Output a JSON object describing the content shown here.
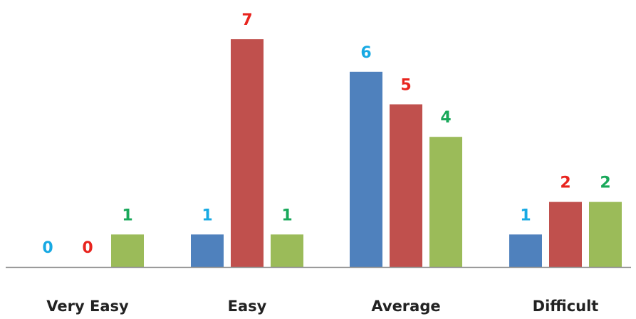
{
  "chart_data": {
    "type": "bar",
    "categories": [
      "Very Easy",
      "Easy",
      "Average",
      "Difficult"
    ],
    "series": [
      {
        "color": "#4F81BD",
        "label_color": "#17A9E3",
        "values": [
          0,
          1,
          6,
          1
        ]
      },
      {
        "color": "#C0504D",
        "label_color": "#E8241E",
        "values": [
          0,
          7,
          5,
          2
        ]
      },
      {
        "color": "#9BBB59",
        "label_color": "#19A85A",
        "values": [
          1,
          1,
          4,
          2
        ]
      }
    ],
    "title": "",
    "xlabel": "",
    "ylabel": "",
    "ylim": [
      0,
      7
    ],
    "grid": false,
    "legend": "none",
    "axis_color": "#8C8C8C"
  }
}
